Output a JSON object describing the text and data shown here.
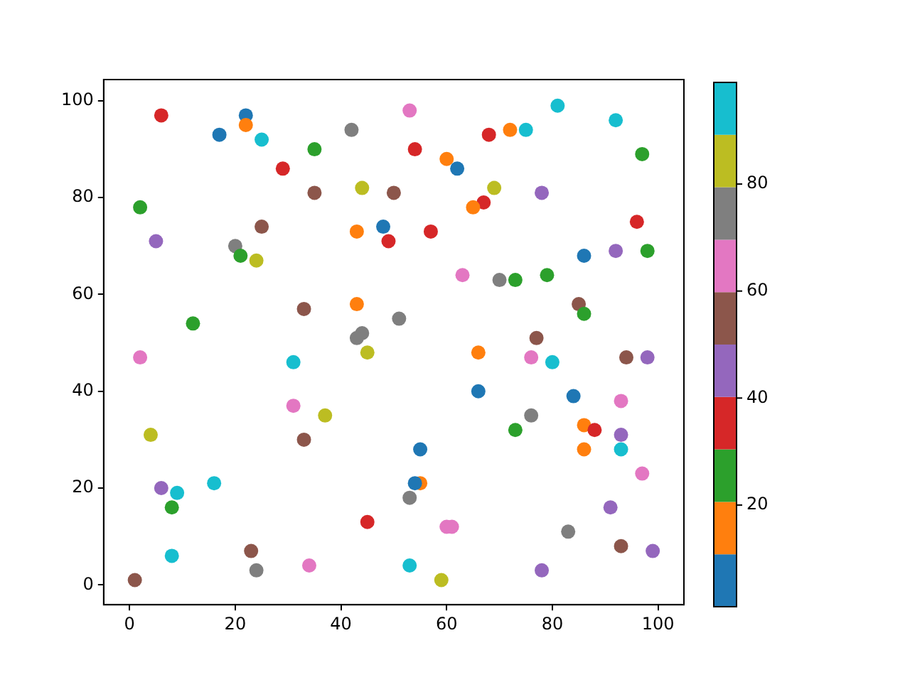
{
  "chart_data": {
    "type": "scatter",
    "x": [
      1,
      2,
      2,
      4,
      5,
      6,
      6,
      8,
      9,
      8,
      12,
      16,
      17,
      20,
      21,
      22,
      22,
      23,
      24,
      24,
      25,
      25,
      29,
      31,
      31,
      37,
      33,
      34,
      45,
      35,
      35,
      42,
      44,
      50,
      43,
      48,
      49,
      33,
      43,
      44,
      43,
      51,
      45,
      53,
      54,
      68,
      72,
      75,
      81,
      92,
      97,
      60,
      62,
      69,
      78,
      67,
      65,
      57,
      96,
      92,
      98,
      86,
      63,
      70,
      73,
      79,
      85,
      86,
      77,
      66,
      76,
      80,
      94,
      98,
      66,
      84,
      93,
      76,
      73,
      86,
      88,
      93,
      55,
      86,
      93,
      55,
      54,
      97,
      53,
      91,
      60,
      61,
      83,
      93,
      99,
      53,
      78,
      59
    ],
    "values": [
      1,
      47,
      78,
      31,
      71,
      97,
      20,
      16,
      19,
      6,
      54,
      21,
      93,
      70,
      68,
      97,
      95,
      7,
      3,
      67,
      74,
      92,
      86,
      46,
      37,
      35,
      30,
      4,
      13,
      81,
      90,
      94,
      82,
      81,
      73,
      74,
      71,
      57,
      58,
      52,
      51,
      55,
      48,
      98,
      90,
      93,
      94,
      94,
      99,
      96,
      89,
      88,
      86,
      82,
      81,
      79,
      78,
      73,
      75,
      69,
      69,
      68,
      64,
      63,
      63,
      64,
      58,
      56,
      51,
      48,
      47,
      46,
      47,
      47,
      40,
      39,
      38,
      35,
      32,
      33,
      32,
      31,
      28,
      28,
      28,
      21,
      21,
      23,
      18,
      16,
      12,
      12,
      11,
      8,
      7,
      4,
      3,
      1
    ],
    "cvalues": [
      55,
      65,
      26,
      84,
      45,
      35,
      45,
      26,
      94,
      94,
      26,
      94,
      6,
      75,
      26,
      6,
      16,
      55,
      75,
      84,
      55,
      94,
      35,
      94,
      65,
      84,
      55,
      65,
      35,
      55,
      26,
      75,
      84,
      55,
      16,
      6,
      35,
      55,
      16,
      75,
      75,
      75,
      84,
      65,
      35,
      35,
      16,
      94,
      94,
      94,
      26,
      16,
      6,
      84,
      45,
      35,
      16,
      35,
      35,
      45,
      26,
      6,
      65,
      75,
      26,
      26,
      55,
      26,
      55,
      16,
      65,
      94,
      55,
      45,
      6,
      6,
      65,
      75,
      26,
      16,
      35,
      45,
      6,
      16,
      94,
      16,
      6,
      65,
      75,
      45,
      65,
      65,
      75,
      55,
      45,
      94,
      45,
      84
    ],
    "clim": [
      1,
      99
    ],
    "cticks": [
      20,
      40,
      60,
      80
    ],
    "xlim": [
      -4.9,
      104.9
    ],
    "xticks": [
      0,
      20,
      40,
      60,
      80,
      100
    ],
    "ylim": [
      -4.1,
      104.4
    ],
    "yticks": [
      0,
      20,
      40,
      60,
      80,
      100
    ],
    "marker": "circle",
    "grid": false,
    "legend": false
  }
}
